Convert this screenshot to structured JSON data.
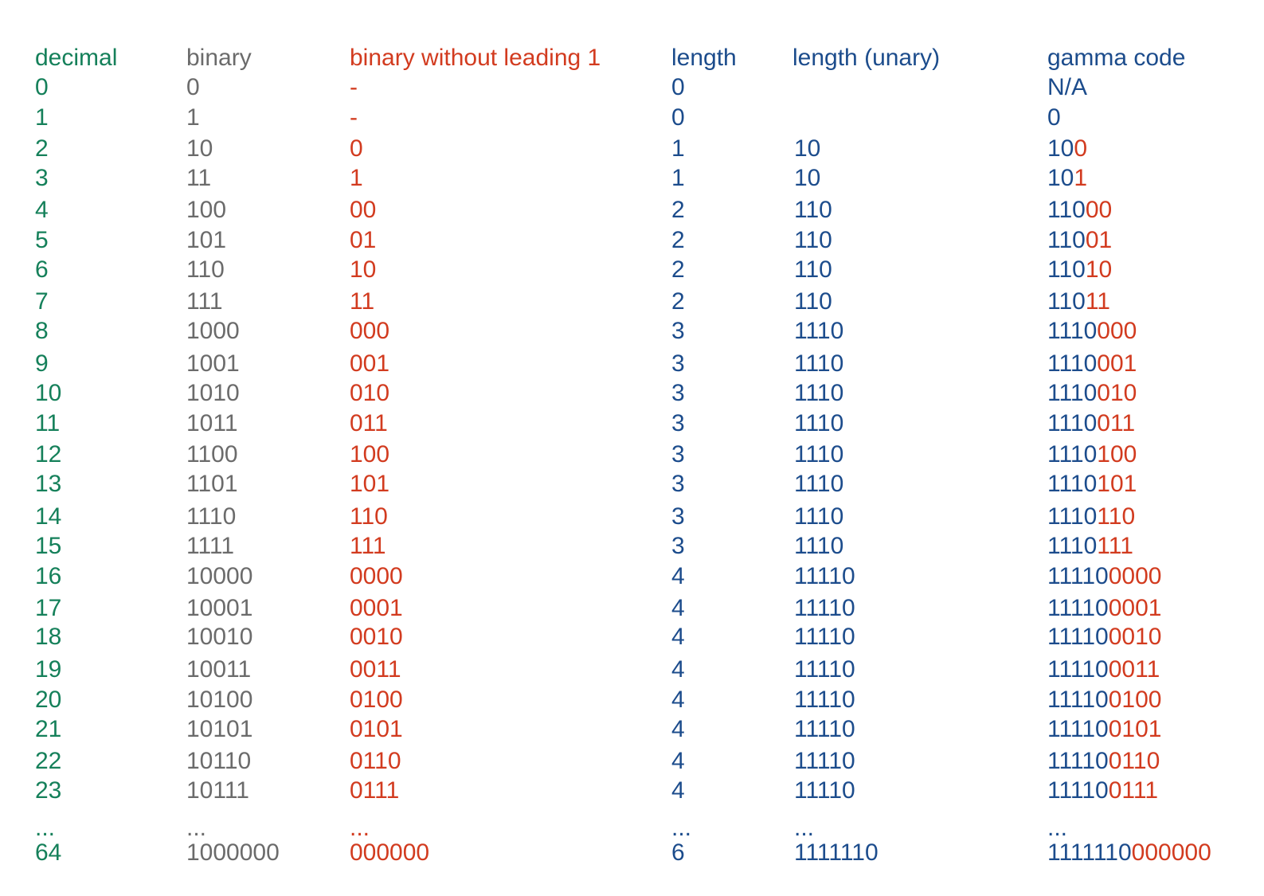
{
  "colors": {
    "decimal": "#15805a",
    "binary": "#6b6b6b",
    "offset": "#d23b1f",
    "length": "#1c4c8c"
  },
  "headers": {
    "decimal": "decimal",
    "binary": "binary",
    "offset": "binary without leading 1",
    "length": "length",
    "unary": "length (unary)",
    "gamma": "gamma code"
  },
  "rows": [
    {
      "decimal": "0",
      "binary": "0",
      "offset": "-",
      "length": "0",
      "unary": "",
      "gamma_prefix": "N/A",
      "gamma_suffix": ""
    },
    {
      "decimal": "1",
      "binary": "1",
      "offset": "-",
      "length": "0",
      "unary": "",
      "gamma_prefix": "0",
      "gamma_suffix": ""
    },
    {
      "decimal": "2",
      "binary": "10",
      "offset": "0",
      "length": "1",
      "unary": "10",
      "gamma_prefix": "10",
      "gamma_suffix": "0"
    },
    {
      "decimal": "3",
      "binary": "11",
      "offset": "1",
      "length": "1",
      "unary": "10",
      "gamma_prefix": "10",
      "gamma_suffix": "1"
    },
    {
      "decimal": "4",
      "binary": "100",
      "offset": "00",
      "length": "2",
      "unary": "110",
      "gamma_prefix": "110",
      "gamma_suffix": "00"
    },
    {
      "decimal": "5",
      "binary": "101",
      "offset": "01",
      "length": "2",
      "unary": "110",
      "gamma_prefix": "110",
      "gamma_suffix": "01"
    },
    {
      "decimal": "6",
      "binary": "110",
      "offset": "10",
      "length": "2",
      "unary": "110",
      "gamma_prefix": "110",
      "gamma_suffix": "10"
    },
    {
      "decimal": "7",
      "binary": "111",
      "offset": "11",
      "length": "2",
      "unary": "110",
      "gamma_prefix": "110",
      "gamma_suffix": "11"
    },
    {
      "decimal": "8",
      "binary": "1000",
      "offset": "000",
      "length": "3",
      "unary": "1110",
      "gamma_prefix": "1110",
      "gamma_suffix": "000"
    },
    {
      "decimal": "9",
      "binary": "1001",
      "offset": "001",
      "length": "3",
      "unary": "1110",
      "gamma_prefix": "1110",
      "gamma_suffix": "001"
    },
    {
      "decimal": "10",
      "binary": "1010",
      "offset": "010",
      "length": "3",
      "unary": "1110",
      "gamma_prefix": "1110",
      "gamma_suffix": "010"
    },
    {
      "decimal": "11",
      "binary": "1011",
      "offset": "011",
      "length": "3",
      "unary": "1110",
      "gamma_prefix": "1110",
      "gamma_suffix": "011"
    },
    {
      "decimal": "12",
      "binary": "1100",
      "offset": "100",
      "length": "3",
      "unary": "1110",
      "gamma_prefix": "1110",
      "gamma_suffix": "100"
    },
    {
      "decimal": "13",
      "binary": "1101",
      "offset": "101",
      "length": "3",
      "unary": "1110",
      "gamma_prefix": "1110",
      "gamma_suffix": "101"
    },
    {
      "decimal": "14",
      "binary": "1110",
      "offset": "110",
      "length": "3",
      "unary": "1110",
      "gamma_prefix": "1110",
      "gamma_suffix": "110"
    },
    {
      "decimal": "15",
      "binary": "1111",
      "offset": "111",
      "length": "3",
      "unary": "1110",
      "gamma_prefix": "1110",
      "gamma_suffix": "111"
    },
    {
      "decimal": "16",
      "binary": "10000",
      "offset": "0000",
      "length": "4",
      "unary": "11110",
      "gamma_prefix": "11110",
      "gamma_suffix": "0000"
    },
    {
      "decimal": "17",
      "binary": "10001",
      "offset": "0001",
      "length": "4",
      "unary": "11110",
      "gamma_prefix": "11110",
      "gamma_suffix": "0001"
    },
    {
      "decimal": "18",
      "binary": "10010",
      "offset": "0010",
      "length": "4",
      "unary": "11110",
      "gamma_prefix": "11110",
      "gamma_suffix": "0010"
    },
    {
      "decimal": "19",
      "binary": "10011",
      "offset": "0011",
      "length": "4",
      "unary": "11110",
      "gamma_prefix": "11110",
      "gamma_suffix": "0011"
    },
    {
      "decimal": "20",
      "binary": "10100",
      "offset": "0100",
      "length": "4",
      "unary": "11110",
      "gamma_prefix": "11110",
      "gamma_suffix": "0100"
    },
    {
      "decimal": "21",
      "binary": "10101",
      "offset": "0101",
      "length": "4",
      "unary": "11110",
      "gamma_prefix": "11110",
      "gamma_suffix": "0101"
    },
    {
      "decimal": "22",
      "binary": "10110",
      "offset": "0110",
      "length": "4",
      "unary": "11110",
      "gamma_prefix": "11110",
      "gamma_suffix": "0110"
    },
    {
      "decimal": "23",
      "binary": "10111",
      "offset": "0111",
      "length": "4",
      "unary": "11110",
      "gamma_prefix": "11110",
      "gamma_suffix": "0111"
    },
    {
      "decimal": "...",
      "binary": "...",
      "offset": "...",
      "length": "...",
      "unary": "...",
      "gamma_prefix": "...",
      "gamma_suffix": ""
    },
    {
      "decimal": "64",
      "binary": "1000000",
      "offset": "000000",
      "length": "6",
      "unary": "1111110",
      "gamma_prefix": "1111110",
      "gamma_suffix": "000000"
    }
  ]
}
